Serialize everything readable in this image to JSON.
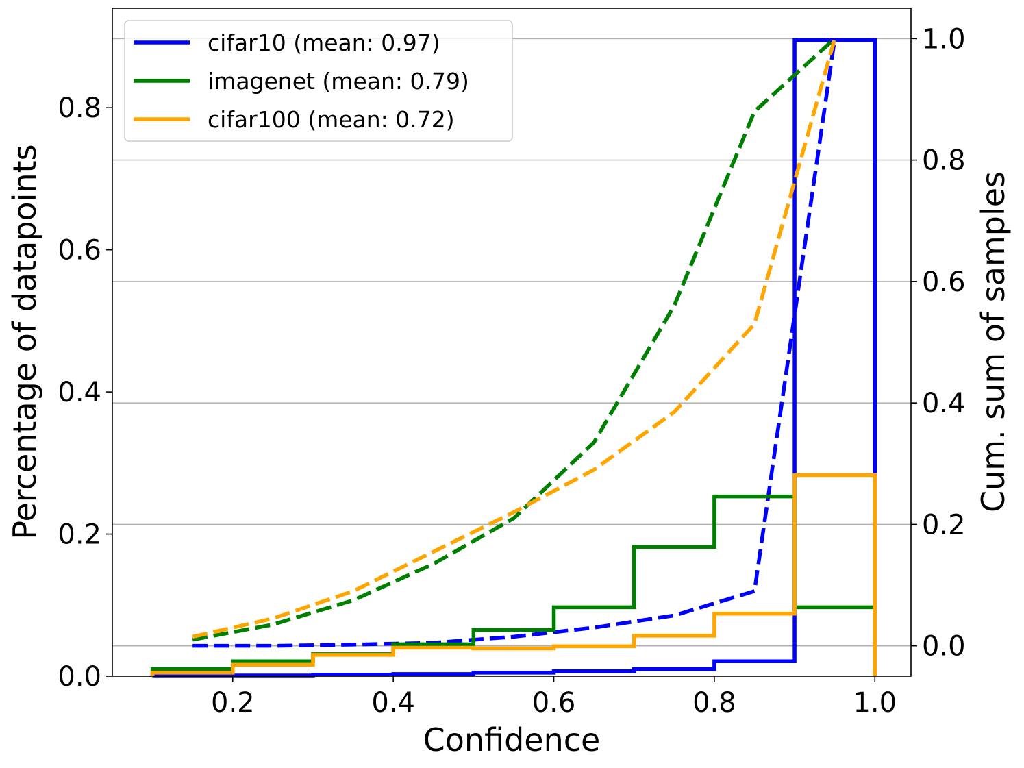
{
  "chart_data": {
    "type": "histogram-step-with-cumulative-lines",
    "xlabel": "Confidence",
    "ylabel_left": "Percentage of datapoints",
    "ylabel_right": "Cum. sum of samples",
    "xlim": [
      0.05,
      1.045
    ],
    "ylim_left": [
      0.0,
      0.94
    ],
    "ylim_right": [
      -0.05,
      1.05
    ],
    "xticks": [
      {
        "value": 0.2,
        "label": "0.2"
      },
      {
        "value": 0.4,
        "label": "0.4"
      },
      {
        "value": 0.6,
        "label": "0.6"
      },
      {
        "value": 0.8,
        "label": "0.8"
      },
      {
        "value": 1.0,
        "label": "1.0"
      }
    ],
    "yticks_left": [
      {
        "value": 0.0,
        "label": "0.0"
      },
      {
        "value": 0.2,
        "label": "0.2"
      },
      {
        "value": 0.4,
        "label": "0.4"
      },
      {
        "value": 0.6,
        "label": "0.6"
      },
      {
        "value": 0.8,
        "label": "0.8"
      }
    ],
    "yticks_right": [
      {
        "value": 0.0,
        "label": "0.0"
      },
      {
        "value": 0.2,
        "label": "0.2"
      },
      {
        "value": 0.4,
        "label": "0.4"
      },
      {
        "value": 0.6,
        "label": "0.6"
      },
      {
        "value": 0.8,
        "label": "0.8"
      },
      {
        "value": 1.0,
        "label": "1.0"
      }
    ],
    "grid": "horizontal-right-axis",
    "legend_position": "top-left",
    "bin_edges": [
      0.1,
      0.2,
      0.3,
      0.4,
      0.5,
      0.6,
      0.7,
      0.8,
      0.9,
      1.0
    ],
    "cumulative_x": [
      0.15,
      0.25,
      0.35,
      0.45,
      0.55,
      0.65,
      0.75,
      0.85,
      0.95
    ],
    "series": [
      {
        "name": "cifar10",
        "legend": "cifar10 (mean: 0.97)",
        "color": "#0000ff",
        "hist": [
          0.001,
          0.001,
          0.002,
          0.003,
          0.005,
          0.007,
          0.01,
          0.021,
          0.895
        ],
        "cumulative": [
          0.0,
          0.0,
          0.002,
          0.005,
          0.015,
          0.03,
          0.05,
          0.09,
          1.0
        ]
      },
      {
        "name": "imagenet",
        "legend": "imagenet (mean: 0.79)",
        "color": "#008000",
        "hist": [
          0.01,
          0.021,
          0.031,
          0.045,
          0.065,
          0.097,
          0.182,
          0.253,
          0.097
        ],
        "cumulative": [
          0.01,
          0.035,
          0.075,
          0.135,
          0.21,
          0.335,
          0.56,
          0.88,
          1.0
        ]
      },
      {
        "name": "cifar100",
        "legend": "cifar100 (mean: 0.72)",
        "color": "#ffa500",
        "hist": [
          0.005,
          0.016,
          0.03,
          0.04,
          0.039,
          0.042,
          0.057,
          0.088,
          0.283
        ],
        "cumulative": [
          0.015,
          0.045,
          0.09,
          0.155,
          0.22,
          0.29,
          0.385,
          0.53,
          1.0
        ]
      }
    ]
  }
}
